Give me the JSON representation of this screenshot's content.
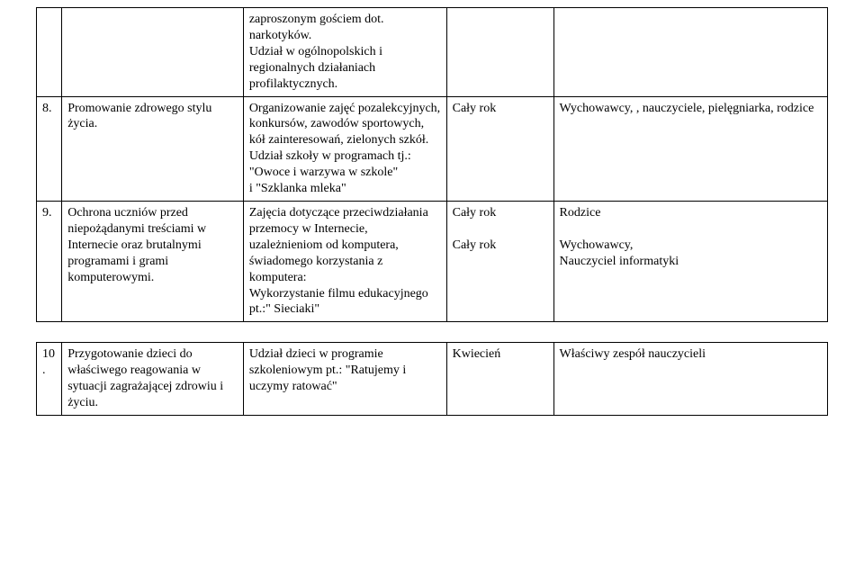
{
  "table1": {
    "rows": [
      {
        "num": "",
        "task": "",
        "activity": "zaproszonym gościem dot. narkotyków.\nUdział w ogólnopolskich i regionalnych działaniach profilaktycznych.",
        "time": "",
        "responsible": ""
      },
      {
        "num": "8.",
        "task": "Promowanie zdrowego stylu życia.",
        "activity": "Organizowanie zajęć pozalekcyjnych, konkursów, zawodów sportowych, kół zainteresowań, zielonych szkół. Udział szkoły w programach tj.: \"Owoce i warzywa w szkole\"\ni \"Szklanka mleka\"",
        "time": "Cały rok",
        "responsible": "Wychowawcy, , nauczyciele, pielęgniarka, rodzice"
      },
      {
        "num": "9.",
        "task": "Ochrona uczniów przed niepożądanymi treściami w Internecie oraz brutalnymi programami i grami komputerowymi.",
        "activity": "Zajęcia dotyczące przeciwdziałania przemocy w Internecie,\nuzależnieniom od komputera, świadomego korzystania z komputera:\nWykorzystanie filmu edukacyjnego pt.:\" Sieciaki\"",
        "time": "Cały rok\n\nCały rok",
        "responsible": "Rodzice\n\nWychowawcy,\nNauczyciel informatyki"
      }
    ]
  },
  "table2": {
    "rows": [
      {
        "num": "10.",
        "task": "Przygotowanie dzieci do właściwego reagowania w sytuacji zagrażającej zdrowiu i życiu.",
        "activity": "Udział dzieci w programie szkoleniowym pt.: \"Ratujemy i uczymy ratować\"",
        "time": "Kwiecień",
        "responsible": "Właściwy zespół nauczycieli"
      }
    ]
  }
}
